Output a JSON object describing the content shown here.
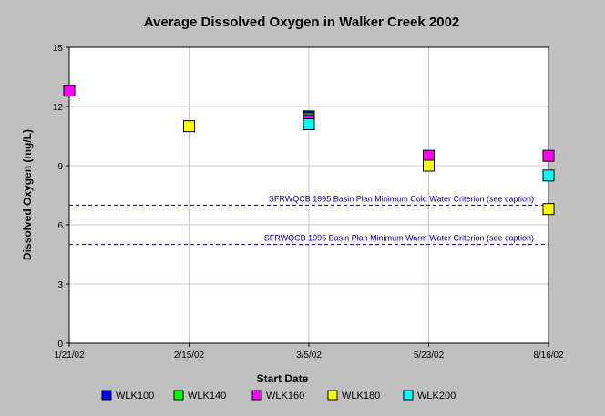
{
  "chart_data": {
    "type": "scatter",
    "title": "Average Dissolved Oxygen in Walker Creek 2002",
    "xlabel": "Start Date",
    "ylabel": "Dissolved Oxygen (mg/L)",
    "categories": [
      "1/21/02",
      "2/15/02",
      "3/5/02",
      "5/23/02",
      "8/16/02"
    ],
    "ylim": [
      0,
      15
    ],
    "yticks": [
      0,
      3,
      6,
      9,
      12,
      15
    ],
    "grid": true,
    "legend_position": "bottom",
    "series": [
      {
        "name": "WLK100",
        "color": "#0000ff",
        "values": [
          null,
          null,
          11.5,
          null,
          null
        ]
      },
      {
        "name": "WLK140",
        "color": "#00ff00",
        "values": [
          null,
          null,
          11.4,
          null,
          null
        ]
      },
      {
        "name": "WLK160",
        "color": "#ff00ff",
        "values": [
          12.8,
          null,
          11.3,
          9.5,
          9.5
        ]
      },
      {
        "name": "WLK180",
        "color": "#ffff00",
        "values": [
          null,
          11.0,
          null,
          9.0,
          6.8
        ]
      },
      {
        "name": "WLK200",
        "color": "#00ffff",
        "values": [
          null,
          null,
          11.1,
          null,
          8.5
        ]
      }
    ],
    "reference_lines": [
      {
        "value": 7,
        "label": "SFRWQCB 1995 Basin Plan Minimum Cold Water Criterion (see caption)",
        "color": "#000080"
      },
      {
        "value": 5,
        "label": "SFRWQCB 1995 Basin Plan Minimum Warm Water Criterion (see caption)",
        "color": "#000080"
      }
    ]
  }
}
